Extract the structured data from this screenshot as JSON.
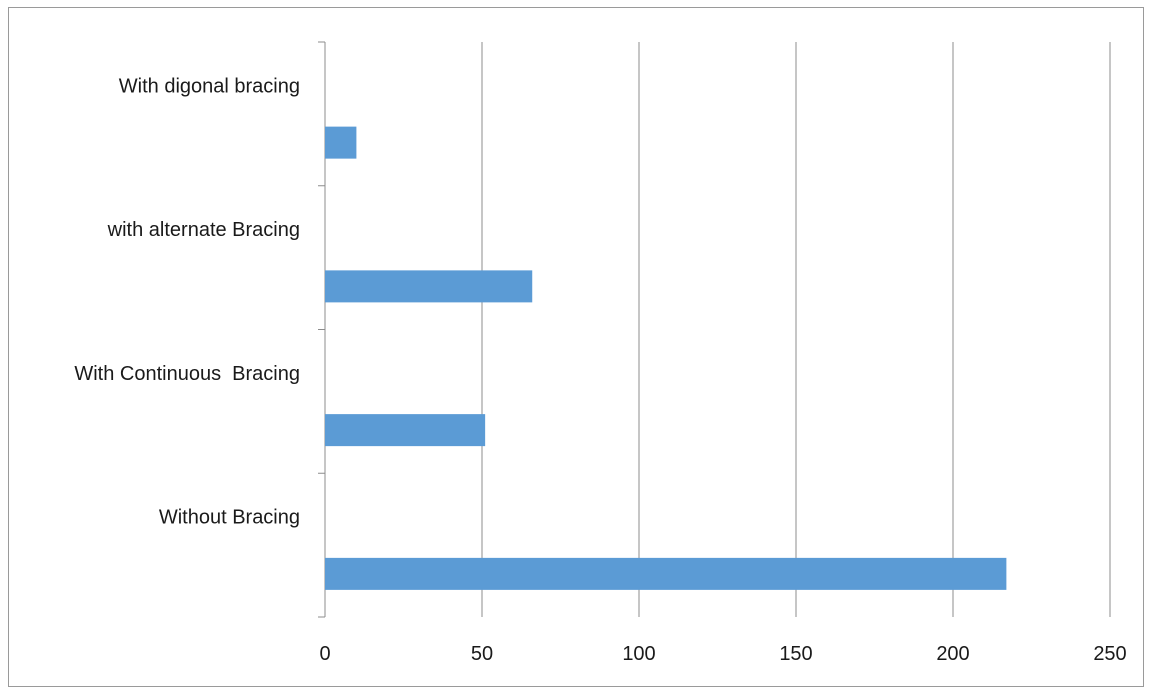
{
  "chart_data": {
    "type": "bar",
    "orientation": "horizontal",
    "categories": [
      "Without Bracing",
      "With Continuous  Bracing",
      "with alternate Bracing",
      "With digonal bracing"
    ],
    "values": [
      217,
      51,
      66,
      10
    ],
    "xlim": [
      0,
      250
    ],
    "xticks": [
      0,
      50,
      100,
      150,
      200,
      250
    ],
    "grid": "vertical",
    "bar_color": "#5b9bd5",
    "title": "",
    "xlabel": "",
    "ylabel": ""
  }
}
